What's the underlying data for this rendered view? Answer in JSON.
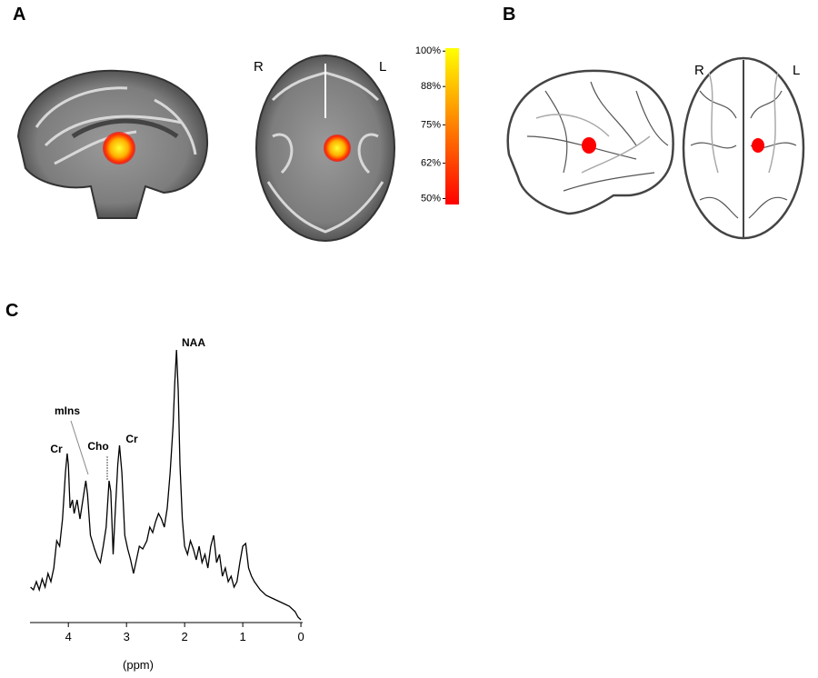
{
  "panels": {
    "a": "A",
    "b": "B",
    "c": "C"
  },
  "panel_a": {
    "right": "R",
    "left": "L"
  },
  "panel_b": {
    "right": "R",
    "left": "L"
  },
  "colorbar": {
    "colors": [
      "#ff0000",
      "#ffff00"
    ],
    "lim": [
      48,
      101
    ],
    "ticks": [
      {
        "value": 100,
        "label": "100%"
      },
      {
        "value": 88,
        "label": "88%"
      },
      {
        "value": 75,
        "label": "75%"
      },
      {
        "value": 62,
        "label": "62%"
      },
      {
        "value": 50,
        "label": "50%"
      }
    ]
  },
  "chart_data": {
    "type": "line",
    "color": "#000000",
    "xlabel": "(ppm)",
    "annotations": [
      "Cr",
      "mIns",
      "Cho",
      "Cr",
      "NAA"
    ],
    "x": [
      4.65,
      4.6,
      4.55,
      4.5,
      4.45,
      4.4,
      4.35,
      4.3,
      4.25,
      4.2,
      4.15,
      4.1,
      4.05,
      4.02,
      4.0,
      3.97,
      3.93,
      3.9,
      3.85,
      3.8,
      3.75,
      3.7,
      3.67,
      3.62,
      3.55,
      3.5,
      3.45,
      3.4,
      3.35,
      3.3,
      3.27,
      3.23,
      3.2,
      3.15,
      3.12,
      3.08,
      3.03,
      2.98,
      2.93,
      2.88,
      2.83,
      2.78,
      2.72,
      2.65,
      2.6,
      2.55,
      2.5,
      2.45,
      2.4,
      2.35,
      2.3,
      2.25,
      2.2,
      2.17,
      2.14,
      2.11,
      2.08,
      2.04,
      2.0,
      1.95,
      1.9,
      1.85,
      1.8,
      1.75,
      1.7,
      1.65,
      1.6,
      1.55,
      1.5,
      1.45,
      1.4,
      1.35,
      1.3,
      1.25,
      1.2,
      1.15,
      1.1,
      1.05,
      1.0,
      0.95,
      0.9,
      0.85,
      0.8,
      0.7,
      0.6,
      0.5,
      0.4,
      0.3,
      0.2,
      0.1,
      0.05,
      0.0
    ],
    "values": [
      13,
      12,
      15,
      12,
      16,
      13,
      18,
      15,
      20,
      30,
      28,
      38,
      55,
      62,
      58,
      42,
      45,
      40,
      45,
      38,
      45,
      52,
      47,
      32,
      27,
      24,
      22,
      28,
      35,
      52,
      48,
      25,
      38,
      58,
      65,
      55,
      32,
      27,
      23,
      18,
      23,
      28,
      27,
      30,
      35,
      33,
      37,
      40,
      38,
      35,
      42,
      55,
      72,
      88,
      100,
      85,
      58,
      38,
      28,
      25,
      30,
      27,
      23,
      28,
      22,
      25,
      20,
      28,
      32,
      22,
      25,
      17,
      20,
      15,
      17,
      13,
      15,
      22,
      28,
      29,
      20,
      17,
      15,
      12,
      10,
      9,
      8,
      7,
      6,
      4,
      2,
      1
    ],
    "xlim": [
      4.66,
      -0.03
    ],
    "ylim": [
      0,
      100
    ],
    "xticks": [
      4,
      3,
      2,
      1,
      0
    ]
  }
}
